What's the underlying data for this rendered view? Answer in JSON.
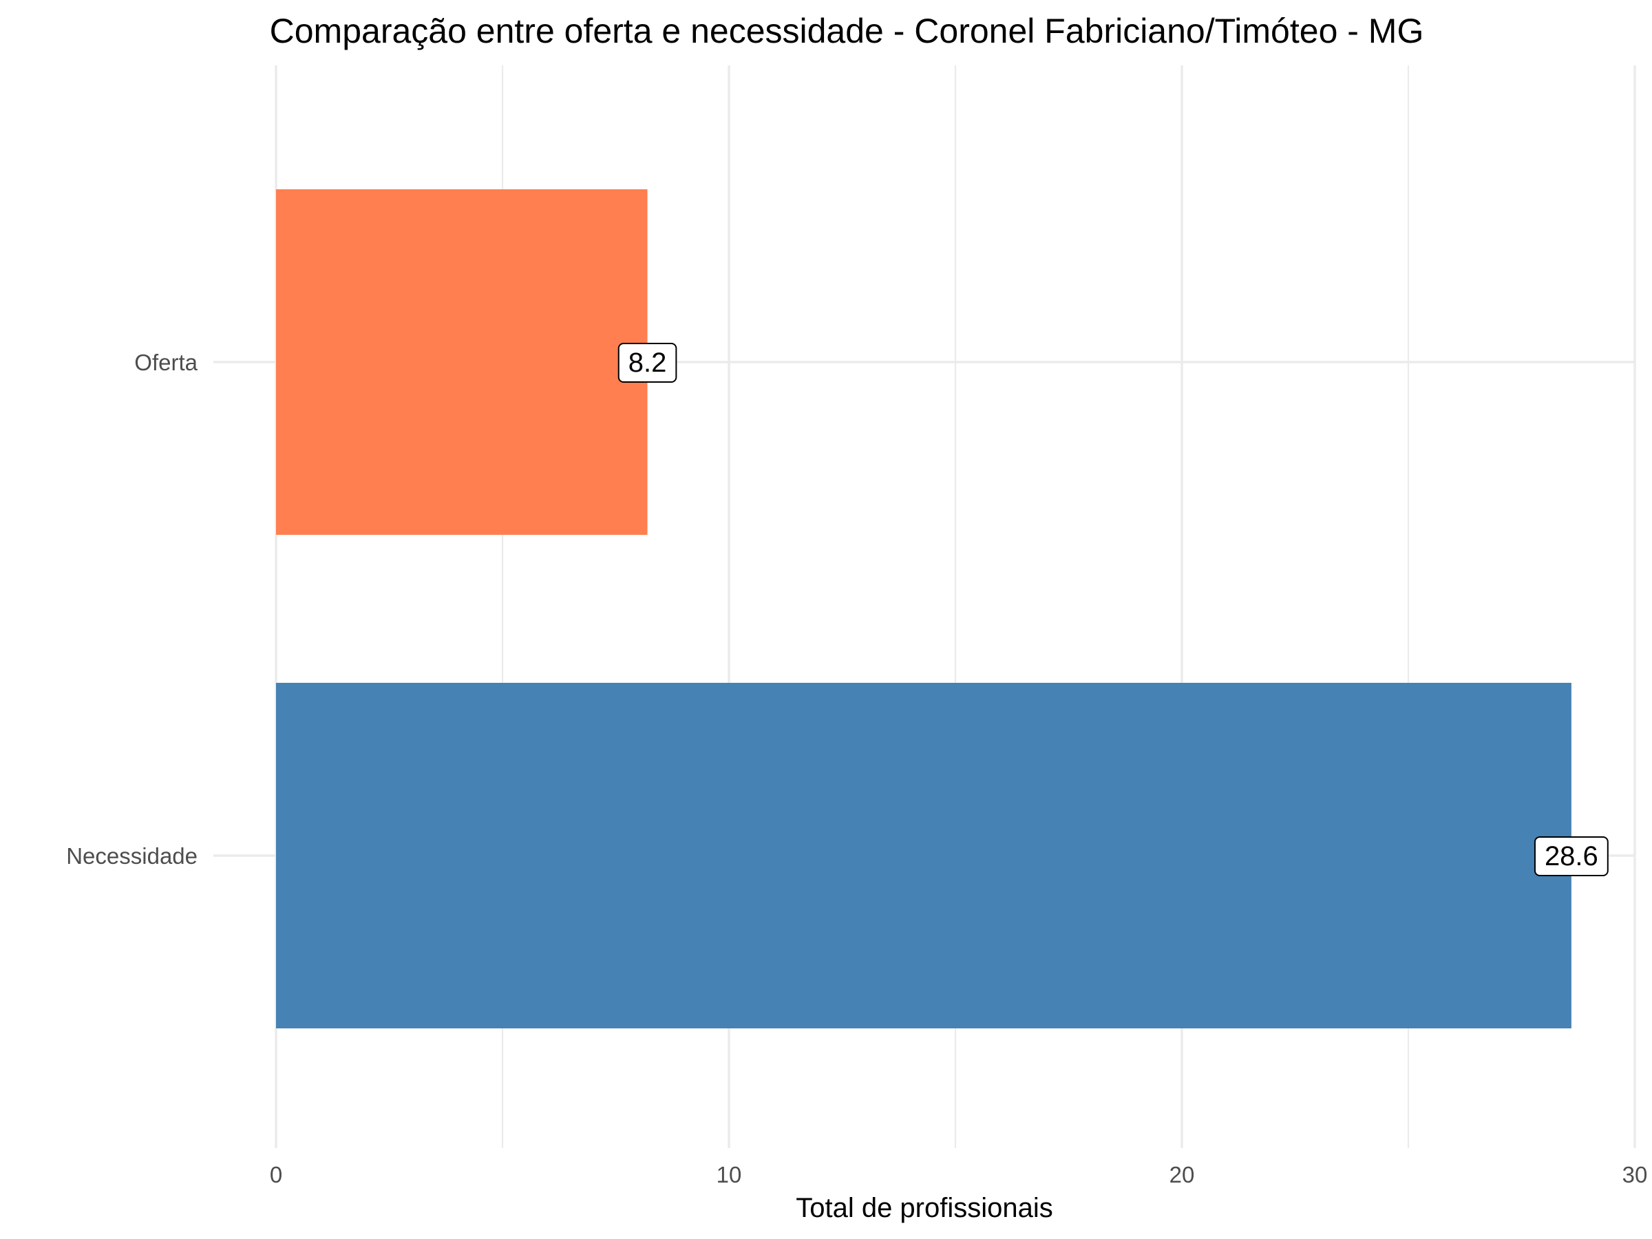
{
  "chart_data": {
    "type": "bar",
    "orientation": "horizontal",
    "title": "Comparação entre oferta e necessidade - Coronel Fabriciano/Timóteo - MG",
    "xlabel": "Total de profissionais",
    "ylabel": "",
    "xlim": [
      0,
      30
    ],
    "x_ticks": [
      "0",
      "10",
      "20",
      "30"
    ],
    "grid": true,
    "legend": "none",
    "categories": [
      "Oferta",
      "Necessidade"
    ],
    "values": [
      8.2,
      28.6
    ],
    "value_labels": [
      "8.2",
      "28.6"
    ],
    "colors": [
      "#FF7F50",
      "#4682B4"
    ]
  }
}
